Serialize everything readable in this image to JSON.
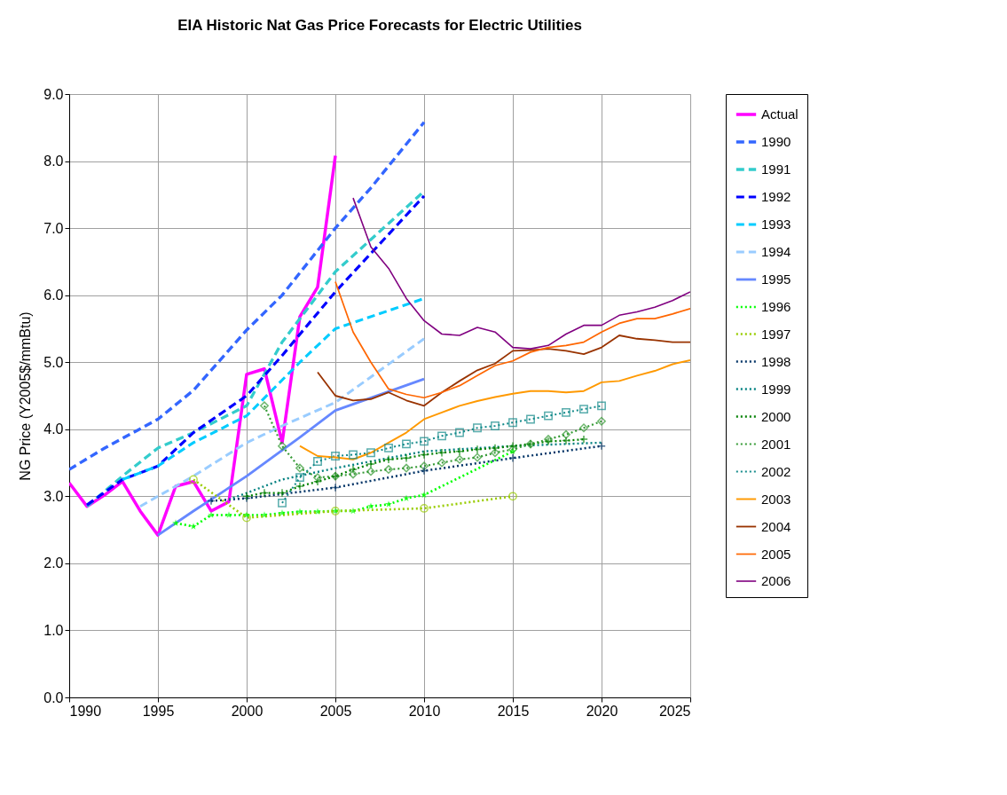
{
  "chart_data": {
    "type": "line",
    "title": "EIA Historic Nat Gas Price Forecasts for Electric Utilities",
    "ylabel": "NG Price (Y2005$/mmBtu)",
    "xlim": [
      1990,
      2025
    ],
    "xticks": [
      1990,
      1995,
      2000,
      2005,
      2010,
      2015,
      2020,
      2025
    ],
    "ylim": [
      0,
      9
    ],
    "yticks": [
      {
        "value": 0,
        "label": "0.0"
      },
      {
        "value": 1,
        "label": "1.0"
      },
      {
        "value": 2,
        "label": "2.0"
      },
      {
        "value": 3,
        "label": "3.0"
      },
      {
        "value": 4,
        "label": "4.0"
      },
      {
        "value": 5,
        "label": "5.0"
      },
      {
        "value": 6,
        "label": "6.0"
      },
      {
        "value": 7,
        "label": "7.0"
      },
      {
        "value": 8,
        "label": "8.0"
      },
      {
        "value": 9,
        "label": "9.0"
      }
    ],
    "grid": true,
    "legend": "right",
    "series": [
      {
        "name": "Actual",
        "color": "#ff00ff",
        "line_style": "solid",
        "marker": "none",
        "x": [
          1990,
          1991,
          1992,
          1993,
          1994,
          1995,
          1996,
          1997,
          1998,
          1999,
          2000,
          2001,
          2002,
          2003,
          2004,
          2005
        ],
        "values": [
          3.2,
          2.85,
          3.02,
          3.22,
          2.78,
          2.42,
          3.15,
          3.22,
          2.78,
          2.92,
          4.82,
          4.9,
          3.8,
          5.68,
          6.12,
          8.08
        ]
      },
      {
        "name": "1990",
        "color": "#3366ff",
        "line_style": "dashed",
        "marker": "none",
        "x": [
          1990,
          1992,
          1995,
          1997,
          2000,
          2002,
          2005,
          2007,
          2010
        ],
        "values": [
          3.4,
          3.72,
          4.15,
          4.58,
          5.48,
          6.0,
          7.0,
          7.6,
          8.58
        ]
      },
      {
        "name": "1991",
        "color": "#33cccc",
        "line_style": "dashed",
        "marker": "none",
        "x": [
          1991,
          1993,
          1995,
          1997,
          2000,
          2002,
          2005,
          2010
        ],
        "values": [
          2.85,
          3.3,
          3.72,
          3.95,
          4.35,
          5.3,
          6.35,
          7.55
        ]
      },
      {
        "name": "1992",
        "color": "#0000ff",
        "line_style": "dashed",
        "marker": "none",
        "x": [
          1991,
          1993,
          1995,
          1997,
          2000,
          2002,
          2005,
          2010
        ],
        "values": [
          2.87,
          3.25,
          3.45,
          3.95,
          4.5,
          5.1,
          6.05,
          7.48
        ]
      },
      {
        "name": "1993",
        "color": "#00ccff",
        "line_style": "dashed",
        "marker": "none",
        "x": [
          1993,
          1995,
          1997,
          2000,
          2003,
          2005,
          2010
        ],
        "values": [
          3.25,
          3.45,
          3.8,
          4.2,
          5.0,
          5.5,
          5.95
        ]
      },
      {
        "name": "1994",
        "color": "#99ccff",
        "line_style": "dashed",
        "marker": "none",
        "x": [
          1994,
          1997,
          2000,
          2002,
          2005,
          2010
        ],
        "values": [
          2.85,
          3.3,
          3.8,
          4.05,
          4.4,
          5.35
        ]
      },
      {
        "name": "1995",
        "color": "#6688ff",
        "line_style": "solid",
        "marker": "none",
        "x": [
          1995,
          1997,
          2000,
          2003,
          2005,
          2010
        ],
        "values": [
          2.42,
          2.78,
          3.3,
          3.88,
          4.28,
          4.75
        ]
      },
      {
        "name": "1996",
        "color": "#00ff00",
        "line_style": "dotted",
        "marker": "star",
        "x": [
          1996,
          1997,
          1998,
          1999,
          2000,
          2001,
          2002,
          2003,
          2004,
          2005,
          2006,
          2007,
          2008,
          2009,
          2010,
          2015
        ],
        "values": [
          2.6,
          2.55,
          2.72,
          2.72,
          2.72,
          2.72,
          2.75,
          2.77,
          2.77,
          2.78,
          2.78,
          2.85,
          2.88,
          2.97,
          3.02,
          3.67
        ]
      },
      {
        "name": "1997",
        "color": "#99cc00",
        "line_style": "dotted",
        "marker": "circle",
        "x": [
          1997,
          2000,
          2005,
          2010,
          2015
        ],
        "values": [
          3.25,
          2.68,
          2.78,
          2.82,
          3.0
        ]
      },
      {
        "name": "1998",
        "color": "#003366",
        "line_style": "dotted",
        "marker": "cross",
        "x": [
          1998,
          2000,
          2005,
          2010,
          2015,
          2020
        ],
        "values": [
          2.93,
          2.97,
          3.13,
          3.38,
          3.57,
          3.75
        ]
      },
      {
        "name": "1999",
        "color": "#008080",
        "line_style": "dotted",
        "marker": "none",
        "x": [
          1999,
          2000,
          2002,
          2005,
          2010,
          2015,
          2020
        ],
        "values": [
          2.95,
          3.05,
          3.25,
          3.42,
          3.67,
          3.75,
          3.8
        ]
      },
      {
        "name": "2000",
        "color": "#008000",
        "line_style": "dotted",
        "marker": "cross",
        "x": [
          2000,
          2001,
          2002,
          2003,
          2004,
          2005,
          2006,
          2007,
          2008,
          2009,
          2010,
          2011,
          2012,
          2013,
          2014,
          2015,
          2016,
          2017,
          2018,
          2019
        ],
        "values": [
          3.0,
          3.05,
          3.05,
          3.15,
          3.22,
          3.3,
          3.4,
          3.48,
          3.55,
          3.57,
          3.62,
          3.65,
          3.67,
          3.7,
          3.72,
          3.75,
          3.78,
          3.82,
          3.83,
          3.85
        ]
      },
      {
        "name": "2001",
        "color": "#339933",
        "line_style": "dotted",
        "marker": "diamond",
        "x": [
          2001,
          2002,
          2003,
          2004,
          2005,
          2006,
          2007,
          2008,
          2009,
          2010,
          2011,
          2012,
          2013,
          2014,
          2015,
          2016,
          2017,
          2018,
          2019,
          2020
        ],
        "values": [
          4.35,
          3.75,
          3.42,
          3.28,
          3.3,
          3.33,
          3.37,
          3.4,
          3.42,
          3.45,
          3.5,
          3.55,
          3.58,
          3.65,
          3.7,
          3.78,
          3.85,
          3.92,
          4.02,
          4.12
        ]
      },
      {
        "name": "2002",
        "color": "#138a8a",
        "line_style": "dotted",
        "marker": "square",
        "x": [
          2002,
          2003,
          2004,
          2005,
          2006,
          2007,
          2008,
          2009,
          2010,
          2011,
          2012,
          2013,
          2014,
          2015,
          2016,
          2017,
          2018,
          2019,
          2020
        ],
        "values": [
          2.9,
          3.28,
          3.52,
          3.6,
          3.62,
          3.65,
          3.72,
          3.78,
          3.82,
          3.9,
          3.95,
          4.02,
          4.05,
          4.1,
          4.15,
          4.2,
          4.25,
          4.3,
          4.35
        ]
      },
      {
        "name": "2003",
        "color": "#ff9900",
        "line_style": "solid",
        "marker": "none",
        "x": [
          2003,
          2004,
          2005,
          2006,
          2007,
          2008,
          2009,
          2010,
          2011,
          2012,
          2013,
          2014,
          2015,
          2016,
          2017,
          2018,
          2019,
          2020,
          2021,
          2022,
          2023,
          2024,
          2025
        ],
        "values": [
          3.75,
          3.6,
          3.58,
          3.55,
          3.65,
          3.8,
          3.95,
          4.15,
          4.25,
          4.35,
          4.42,
          4.48,
          4.53,
          4.57,
          4.57,
          4.55,
          4.57,
          4.7,
          4.72,
          4.8,
          4.87,
          4.97,
          5.03
        ]
      },
      {
        "name": "2004",
        "color": "#993300",
        "line_style": "solid",
        "marker": "none",
        "x": [
          2004,
          2005,
          2006,
          2007,
          2008,
          2009,
          2010,
          2011,
          2012,
          2013,
          2014,
          2015,
          2016,
          2017,
          2018,
          2019,
          2020,
          2021,
          2022,
          2023,
          2024,
          2025
        ],
        "values": [
          4.85,
          4.5,
          4.43,
          4.45,
          4.55,
          4.43,
          4.35,
          4.55,
          4.72,
          4.88,
          4.98,
          5.17,
          5.18,
          5.2,
          5.17,
          5.12,
          5.22,
          5.4,
          5.35,
          5.33,
          5.3,
          5.3
        ]
      },
      {
        "name": "2005",
        "color": "#ff6600",
        "line_style": "solid",
        "marker": "none",
        "x": [
          2005,
          2006,
          2007,
          2008,
          2009,
          2010,
          2011,
          2012,
          2013,
          2014,
          2015,
          2016,
          2017,
          2018,
          2019,
          2020,
          2021,
          2022,
          2023,
          2024,
          2025
        ],
        "values": [
          6.2,
          5.45,
          5.0,
          4.6,
          4.52,
          4.47,
          4.55,
          4.65,
          4.8,
          4.95,
          5.02,
          5.15,
          5.22,
          5.25,
          5.3,
          5.45,
          5.58,
          5.65,
          5.65,
          5.72,
          5.8
        ]
      },
      {
        "name": "2006",
        "color": "#800080",
        "line_style": "solid",
        "marker": "none",
        "x": [
          2006,
          2007,
          2008,
          2009,
          2010,
          2011,
          2012,
          2013,
          2014,
          2015,
          2016,
          2017,
          2018,
          2019,
          2020,
          2021,
          2022,
          2023,
          2024,
          2025
        ],
        "values": [
          7.45,
          6.72,
          6.4,
          5.95,
          5.62,
          5.42,
          5.4,
          5.52,
          5.45,
          5.22,
          5.2,
          5.25,
          5.42,
          5.55,
          5.55,
          5.7,
          5.75,
          5.82,
          5.92,
          6.05
        ]
      }
    ]
  }
}
